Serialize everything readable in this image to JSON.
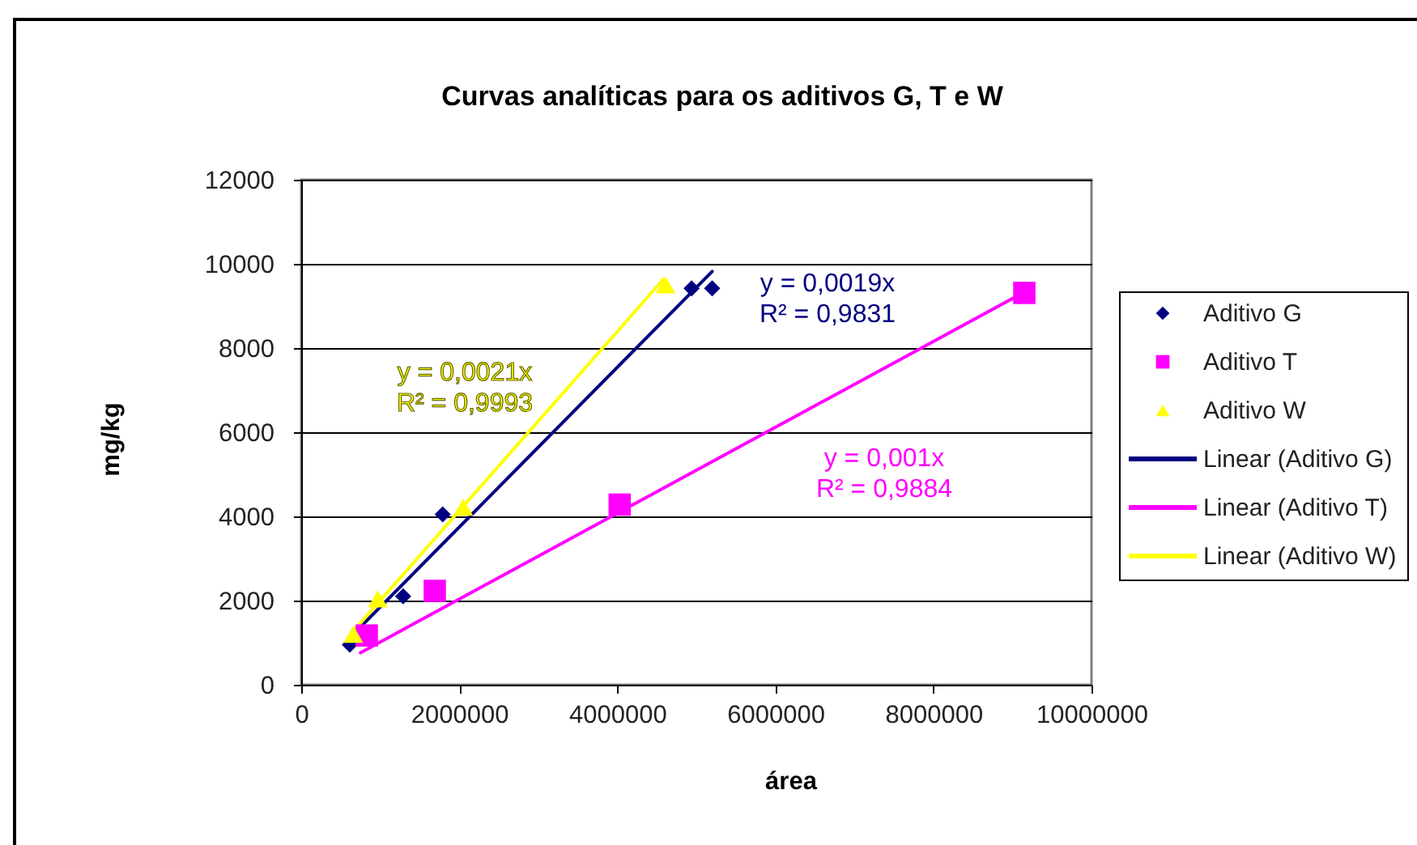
{
  "chart_data": {
    "type": "scatter",
    "title": "Curvas analíticas para os aditivos G, T e W",
    "xlabel": "área",
    "ylabel": "mg/kg",
    "xlim": [
      0,
      10000000
    ],
    "xticks": [
      0,
      2000000,
      4000000,
      6000000,
      8000000,
      10000000
    ],
    "ylim": [
      0,
      12000
    ],
    "yticks": [
      0,
      2000,
      4000,
      6000,
      8000,
      10000,
      12000
    ],
    "grid": "y",
    "legend": "right",
    "series": [
      {
        "name": "Aditivo G",
        "marker": "diamond",
        "color": "#000080",
        "x": [
          615000,
          1290000,
          1790000,
          4940000,
          5200000
        ],
        "values": [
          950,
          2100,
          4050,
          9420,
          9420
        ]
      },
      {
        "name": "Aditivo T",
        "marker": "square",
        "color": "#ff00ff",
        "x": [
          830000,
          1690000,
          4030000,
          9150000
        ],
        "values": [
          1170,
          2230,
          4280,
          9310
        ]
      },
      {
        "name": "Aditivo W",
        "marker": "triangle",
        "color": "#ffff00",
        "x": [
          660000,
          970000,
          2050000,
          4610000
        ],
        "values": [
          1200,
          2040,
          4220,
          9500
        ]
      },
      {
        "name": "Linear (Aditivo G)",
        "type": "line",
        "color": "#000080",
        "x": [
          580000,
          5200000
        ],
        "values": [
          1050,
          9820
        ]
      },
      {
        "name": "Linear (Aditivo T)",
        "type": "line",
        "color": "#ff00ff",
        "x": [
          750000,
          9100000
        ],
        "values": [
          760,
          9280
        ]
      },
      {
        "name": "Linear (Aditivo W)",
        "type": "line",
        "color": "#ffff00",
        "x": [
          600000,
          4580000
        ],
        "values": [
          1150,
          9630
        ]
      }
    ],
    "annotations": [
      "y = 0,0019x\nR² = 0,9831",
      "y = 0,001x\nR² = 0,9884",
      "y = 0,0021x\nR² = 0,9993"
    ]
  }
}
